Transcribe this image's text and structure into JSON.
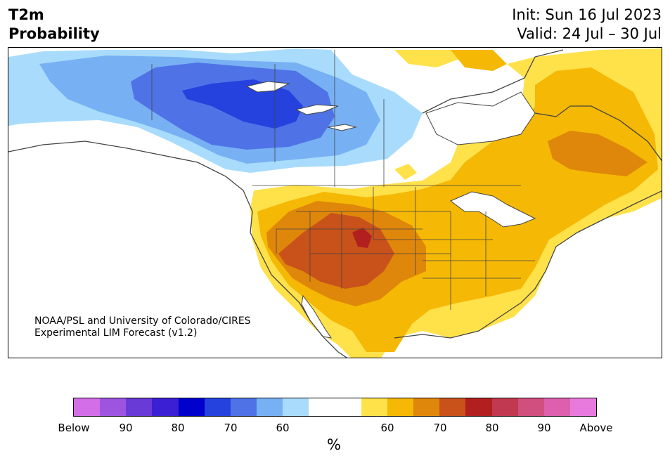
{
  "title": {
    "line1": "T2m",
    "line2": "Probability"
  },
  "init": {
    "line1": "Init: Sun 16 Jul 2023",
    "line2": "Valid: 24 Jul – 30 Jul"
  },
  "credit": {
    "line1": "NOAA/PSL and University of Colorado/CIRES",
    "line2": "Experimental LIM Forecast (v1.2)"
  },
  "colorbar": {
    "colors": [
      "#d46de8",
      "#9d55e0",
      "#6a3ad6",
      "#3b1fd4",
      "#0000cd",
      "#2541de",
      "#4f73e6",
      "#77b1f3",
      "#a9dcfc",
      "#ffffff",
      "#ffffff",
      "#ffe14a",
      "#f4b805",
      "#df870a",
      "#c8521a",
      "#b1201e",
      "#c13950",
      "#d04f7e",
      "#dd5fad",
      "#e87ade"
    ],
    "labels": [
      "Below",
      "90",
      "80",
      "70",
      "60",
      "60",
      "70",
      "80",
      "90",
      "Above"
    ],
    "unit": "%"
  },
  "map_colors": {
    "cold_60": "#a9dcfc",
    "cold_65": "#77b1f3",
    "cold_70": "#4f73e6",
    "cold_75": "#2541de",
    "warm_60": "#ffe14a",
    "warm_65": "#f4b805",
    "warm_70": "#df870a",
    "warm_75": "#c8521a",
    "warm_80": "#b1201e",
    "coastline": "#444444",
    "water": "#ffffff"
  }
}
